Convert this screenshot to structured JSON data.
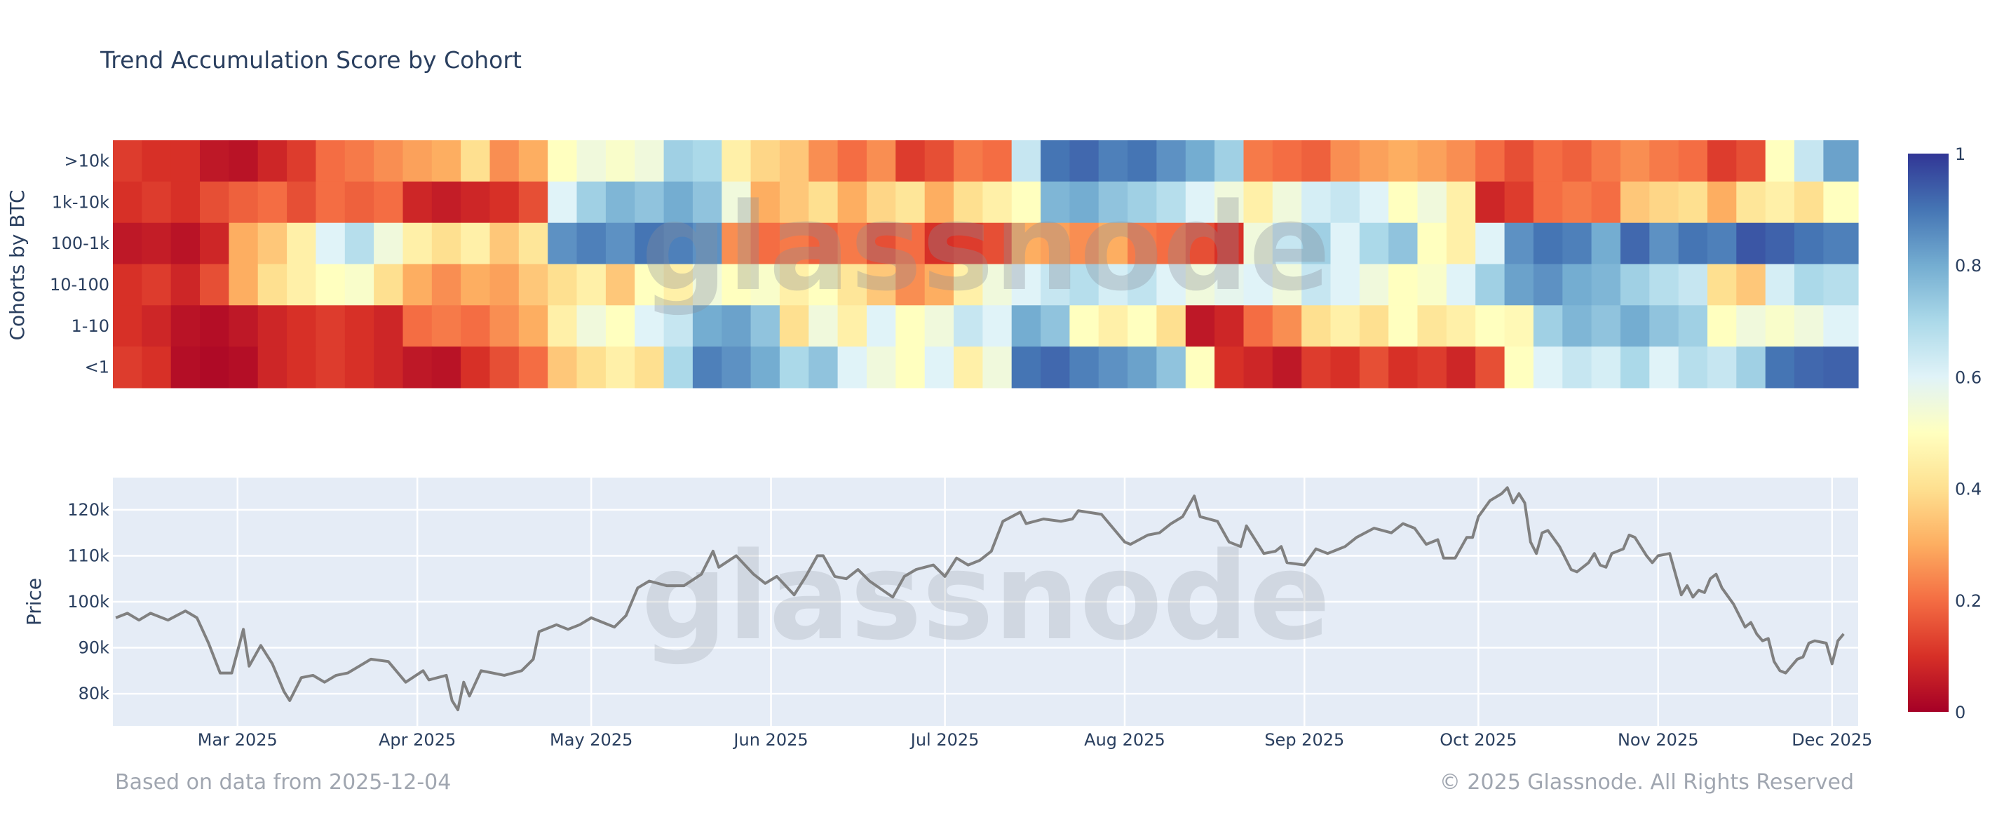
{
  "title": "Trend Accumulation Score by Cohort",
  "footer": {
    "left": "Based on data from 2025-12-04",
    "right": "© 2025 Glassnode. All Rights Reserved"
  },
  "watermark": "glassnode",
  "colors": {
    "text": "#2a3f5f",
    "price_line": "#808080",
    "plot_bg": "#e5ecf6",
    "grid": "#ffffff",
    "footer": "#a0a6b0"
  },
  "chart_data": [
    {
      "type": "heatmap",
      "title": "",
      "xlabel": "",
      "ylabel": "Cohorts by BTC",
      "xlim": [
        "2025-02-07T12:00:00Z",
        "2025-12-05T12:00:00Z"
      ],
      "categories_y": [
        ">10k",
        "1k-10k",
        "100-1k",
        "10-100",
        "1-10",
        "<1"
      ],
      "x": [
        "2025-02-08",
        "2025-02-13",
        "2025-02-18",
        "2025-02-23",
        "2025-02-28",
        "2025-03-05",
        "2025-03-10",
        "2025-03-15",
        "2025-03-20",
        "2025-03-25",
        "2025-03-30",
        "2025-04-04",
        "2025-04-09",
        "2025-04-14",
        "2025-04-19",
        "2025-04-24",
        "2025-04-29",
        "2025-05-04",
        "2025-05-09",
        "2025-05-14",
        "2025-05-19",
        "2025-05-24",
        "2025-05-29",
        "2025-06-03",
        "2025-06-08",
        "2025-06-13",
        "2025-06-18",
        "2025-06-23",
        "2025-06-28",
        "2025-07-03",
        "2025-07-08",
        "2025-07-13",
        "2025-07-18",
        "2025-07-23",
        "2025-07-28",
        "2025-08-02",
        "2025-08-07",
        "2025-08-12",
        "2025-08-17",
        "2025-08-22",
        "2025-08-27",
        "2025-09-01",
        "2025-09-06",
        "2025-09-11",
        "2025-09-16",
        "2025-09-21",
        "2025-09-26",
        "2025-10-01",
        "2025-10-06",
        "2025-10-11",
        "2025-10-16",
        "2025-10-21",
        "2025-10-26",
        "2025-10-31",
        "2025-11-05",
        "2025-11-10",
        "2025-11-15",
        "2025-11-20",
        "2025-11-25",
        "2025-11-30"
      ],
      "z": [
        [
          0.12,
          0.1,
          0.1,
          0.05,
          0.04,
          0.08,
          0.12,
          0.2,
          0.22,
          0.25,
          0.28,
          0.3,
          0.4,
          0.25,
          0.3,
          0.5,
          0.55,
          0.52,
          0.55,
          0.72,
          0.7,
          0.45,
          0.38,
          0.35,
          0.25,
          0.2,
          0.25,
          0.12,
          0.15,
          0.22,
          0.2,
          0.65,
          0.9,
          0.92,
          0.88,
          0.9,
          0.85,
          0.8,
          0.72,
          0.22,
          0.2,
          0.18,
          0.25,
          0.28,
          0.3,
          0.28,
          0.25,
          0.2,
          0.15,
          0.2,
          0.18,
          0.22,
          0.25,
          0.22,
          0.2,
          0.12,
          0.15,
          0.5,
          0.65,
          0.82
        ],
        [
          0.1,
          0.12,
          0.1,
          0.15,
          0.18,
          0.2,
          0.15,
          0.2,
          0.18,
          0.2,
          0.08,
          0.06,
          0.08,
          0.1,
          0.15,
          0.6,
          0.72,
          0.78,
          0.75,
          0.8,
          0.75,
          0.55,
          0.3,
          0.35,
          0.4,
          0.3,
          0.38,
          0.42,
          0.3,
          0.4,
          0.45,
          0.5,
          0.78,
          0.8,
          0.75,
          0.72,
          0.68,
          0.6,
          0.55,
          0.45,
          0.55,
          0.62,
          0.65,
          0.6,
          0.5,
          0.55,
          0.45,
          0.08,
          0.12,
          0.2,
          0.22,
          0.2,
          0.35,
          0.38,
          0.4,
          0.3,
          0.42,
          0.45,
          0.4,
          0.5
        ],
        [
          0.05,
          0.06,
          0.04,
          0.08,
          0.3,
          0.35,
          0.45,
          0.6,
          0.68,
          0.55,
          0.45,
          0.4,
          0.45,
          0.35,
          0.42,
          0.85,
          0.88,
          0.85,
          0.9,
          0.88,
          0.85,
          0.25,
          0.2,
          0.22,
          0.18,
          0.22,
          0.15,
          0.2,
          0.1,
          0.12,
          0.15,
          0.3,
          0.28,
          0.25,
          0.3,
          0.22,
          0.2,
          0.15,
          0.1,
          0.55,
          0.65,
          0.72,
          0.6,
          0.7,
          0.75,
          0.5,
          0.45,
          0.6,
          0.85,
          0.9,
          0.88,
          0.8,
          0.92,
          0.85,
          0.9,
          0.88,
          0.95,
          0.93,
          0.9,
          0.88
        ],
        [
          0.1,
          0.12,
          0.08,
          0.15,
          0.3,
          0.4,
          0.45,
          0.5,
          0.52,
          0.4,
          0.3,
          0.25,
          0.3,
          0.28,
          0.35,
          0.4,
          0.45,
          0.35,
          0.5,
          0.45,
          0.55,
          0.5,
          0.52,
          0.45,
          0.5,
          0.42,
          0.35,
          0.25,
          0.3,
          0.45,
          0.55,
          0.6,
          0.65,
          0.68,
          0.62,
          0.66,
          0.6,
          0.55,
          0.58,
          0.6,
          0.55,
          0.65,
          0.6,
          0.55,
          0.5,
          0.52,
          0.6,
          0.72,
          0.82,
          0.85,
          0.8,
          0.78,
          0.72,
          0.68,
          0.65,
          0.4,
          0.35,
          0.62,
          0.7,
          0.68
        ],
        [
          0.1,
          0.08,
          0.04,
          0.03,
          0.05,
          0.08,
          0.1,
          0.12,
          0.1,
          0.08,
          0.2,
          0.22,
          0.2,
          0.25,
          0.3,
          0.45,
          0.55,
          0.5,
          0.6,
          0.65,
          0.8,
          0.82,
          0.75,
          0.4,
          0.55,
          0.45,
          0.6,
          0.5,
          0.55,
          0.65,
          0.6,
          0.8,
          0.75,
          0.5,
          0.45,
          0.5,
          0.4,
          0.05,
          0.08,
          0.2,
          0.25,
          0.4,
          0.45,
          0.4,
          0.5,
          0.42,
          0.45,
          0.5,
          0.48,
          0.72,
          0.78,
          0.75,
          0.8,
          0.75,
          0.72,
          0.5,
          0.55,
          0.52,
          0.55,
          0.6
        ],
        [
          0.12,
          0.1,
          0.03,
          0.02,
          0.03,
          0.08,
          0.1,
          0.12,
          0.1,
          0.08,
          0.05,
          0.04,
          0.1,
          0.15,
          0.2,
          0.35,
          0.4,
          0.45,
          0.4,
          0.7,
          0.88,
          0.85,
          0.8,
          0.7,
          0.75,
          0.6,
          0.55,
          0.5,
          0.6,
          0.45,
          0.55,
          0.9,
          0.92,
          0.88,
          0.85,
          0.82,
          0.75,
          0.5,
          0.1,
          0.08,
          0.05,
          0.12,
          0.1,
          0.15,
          0.1,
          0.12,
          0.08,
          0.15,
          0.5,
          0.6,
          0.65,
          0.62,
          0.7,
          0.6,
          0.68,
          0.65,
          0.72,
          0.9,
          0.92,
          0.93
        ]
      ],
      "zlim": [
        0,
        1
      ],
      "colorscale": "RdYlBu",
      "colorbar": {
        "ticks": [
          0,
          0.2,
          0.4,
          0.6,
          0.8,
          1
        ],
        "tick_labels": [
          "0",
          "0.2",
          "0.4",
          "0.6",
          "0.8",
          "1"
        ]
      }
    },
    {
      "type": "line",
      "title": "",
      "xlabel": "",
      "ylabel": "Price",
      "xlim": [
        "2025-02-07T12:00:00Z",
        "2025-12-05T12:00:00Z"
      ],
      "ylim": [
        73000,
        127000
      ],
      "grid": true,
      "yticks": [
        80000,
        90000,
        100000,
        110000,
        120000
      ],
      "ytick_labels": [
        "80k",
        "90k",
        "100k",
        "110k",
        "120k"
      ],
      "xticks": [
        "2025-03-01",
        "2025-04-01",
        "2025-05-01",
        "2025-06-01",
        "2025-07-01",
        "2025-08-01",
        "2025-09-01",
        "2025-10-01",
        "2025-11-01",
        "2025-12-01"
      ],
      "xtick_labels": [
        "Mar 2025",
        "Apr 2025",
        "May 2025",
        "Jun 2025",
        "Jul 2025",
        "Aug 2025",
        "Sep 2025",
        "Oct 2025",
        "Nov 2025",
        "Dec 2025"
      ],
      "points": [
        [
          "2025-02-08",
          96500
        ],
        [
          "2025-02-10",
          97500
        ],
        [
          "2025-02-12",
          96000
        ],
        [
          "2025-02-14",
          97500
        ],
        [
          "2025-02-17",
          96000
        ],
        [
          "2025-02-20",
          98000
        ],
        [
          "2025-02-22",
          96500
        ],
        [
          "2025-02-24",
          91000
        ],
        [
          "2025-02-26",
          84500
        ],
        [
          "2025-02-28",
          84500
        ],
        [
          "2025-03-02",
          94000
        ],
        [
          "2025-03-03",
          86000
        ],
        [
          "2025-03-05",
          90500
        ],
        [
          "2025-03-07",
          86500
        ],
        [
          "2025-03-09",
          80500
        ],
        [
          "2025-03-10",
          78500
        ],
        [
          "2025-03-12",
          83500
        ],
        [
          "2025-03-14",
          84000
        ],
        [
          "2025-03-16",
          82500
        ],
        [
          "2025-03-18",
          84000
        ],
        [
          "2025-03-20",
          84500
        ],
        [
          "2025-03-24",
          87500
        ],
        [
          "2025-03-27",
          87000
        ],
        [
          "2025-03-30",
          82500
        ],
        [
          "2025-04-02",
          85000
        ],
        [
          "2025-04-03",
          83000
        ],
        [
          "2025-04-06",
          84000
        ],
        [
          "2025-04-07",
          78500
        ],
        [
          "2025-04-08",
          76500
        ],
        [
          "2025-04-09",
          82500
        ],
        [
          "2025-04-10",
          79500
        ],
        [
          "2025-04-12",
          85000
        ],
        [
          "2025-04-14",
          84500
        ],
        [
          "2025-04-16",
          84000
        ],
        [
          "2025-04-19",
          85000
        ],
        [
          "2025-04-21",
          87500
        ],
        [
          "2025-04-22",
          93500
        ],
        [
          "2025-04-25",
          95000
        ],
        [
          "2025-04-27",
          94000
        ],
        [
          "2025-04-29",
          95000
        ],
        [
          "2025-05-01",
          96500
        ],
        [
          "2025-05-03",
          95500
        ],
        [
          "2025-05-05",
          94500
        ],
        [
          "2025-05-07",
          97000
        ],
        [
          "2025-05-09",
          103000
        ],
        [
          "2025-05-11",
          104500
        ],
        [
          "2025-05-14",
          103500
        ],
        [
          "2025-05-17",
          103500
        ],
        [
          "2025-05-20",
          106000
        ],
        [
          "2025-05-22",
          111000
        ],
        [
          "2025-05-23",
          107500
        ],
        [
          "2025-05-26",
          110000
        ],
        [
          "2025-05-29",
          106000
        ],
        [
          "2025-05-31",
          104000
        ],
        [
          "2025-06-02",
          105500
        ],
        [
          "2025-06-05",
          101500
        ],
        [
          "2025-06-07",
          105500
        ],
        [
          "2025-06-09",
          110000
        ],
        [
          "2025-06-10",
          110000
        ],
        [
          "2025-06-12",
          105500
        ],
        [
          "2025-06-14",
          105000
        ],
        [
          "2025-06-16",
          107000
        ],
        [
          "2025-06-18",
          104500
        ],
        [
          "2025-06-22",
          101000
        ],
        [
          "2025-06-24",
          105500
        ],
        [
          "2025-06-26",
          107000
        ],
        [
          "2025-06-29",
          108000
        ],
        [
          "2025-07-01",
          105500
        ],
        [
          "2025-07-03",
          109500
        ],
        [
          "2025-07-05",
          108000
        ],
        [
          "2025-07-07",
          109000
        ],
        [
          "2025-07-09",
          111000
        ],
        [
          "2025-07-11",
          117500
        ],
        [
          "2025-07-14",
          119500
        ],
        [
          "2025-07-15",
          117000
        ],
        [
          "2025-07-18",
          118000
        ],
        [
          "2025-07-21",
          117500
        ],
        [
          "2025-07-23",
          118000
        ],
        [
          "2025-07-24",
          119800
        ],
        [
          "2025-07-28",
          119000
        ],
        [
          "2025-08-01",
          113000
        ],
        [
          "2025-08-02",
          112500
        ],
        [
          "2025-08-05",
          114500
        ],
        [
          "2025-08-07",
          115000
        ],
        [
          "2025-08-09",
          117000
        ],
        [
          "2025-08-11",
          118500
        ],
        [
          "2025-08-13",
          123000
        ],
        [
          "2025-08-14",
          118500
        ],
        [
          "2025-08-17",
          117500
        ],
        [
          "2025-08-19",
          113000
        ],
        [
          "2025-08-21",
          112000
        ],
        [
          "2025-08-22",
          116500
        ],
        [
          "2025-08-25",
          110500
        ],
        [
          "2025-08-27",
          111000
        ],
        [
          "2025-08-28",
          112000
        ],
        [
          "2025-08-29",
          108500
        ],
        [
          "2025-09-01",
          108000
        ],
        [
          "2025-09-03",
          111500
        ],
        [
          "2025-09-05",
          110500
        ],
        [
          "2025-09-08",
          112000
        ],
        [
          "2025-09-10",
          114000
        ],
        [
          "2025-09-13",
          116000
        ],
        [
          "2025-09-16",
          115000
        ],
        [
          "2025-09-18",
          117000
        ],
        [
          "2025-09-20",
          116000
        ],
        [
          "2025-09-22",
          112500
        ],
        [
          "2025-09-24",
          113500
        ],
        [
          "2025-09-25",
          109500
        ],
        [
          "2025-09-27",
          109500
        ],
        [
          "2025-09-29",
          114000
        ],
        [
          "2025-09-30",
          114000
        ],
        [
          "2025-10-01",
          118500
        ],
        [
          "2025-10-03",
          122000
        ],
        [
          "2025-10-05",
          123500
        ],
        [
          "2025-10-06",
          124800
        ],
        [
          "2025-10-07",
          121500
        ],
        [
          "2025-10-08",
          123500
        ],
        [
          "2025-10-09",
          121500
        ],
        [
          "2025-10-10",
          113000
        ],
        [
          "2025-10-11",
          110500
        ],
        [
          "2025-10-12",
          115000
        ],
        [
          "2025-10-13",
          115500
        ],
        [
          "2025-10-15",
          112000
        ],
        [
          "2025-10-17",
          107000
        ],
        [
          "2025-10-18",
          106500
        ],
        [
          "2025-10-20",
          108500
        ],
        [
          "2025-10-21",
          110500
        ],
        [
          "2025-10-22",
          108000
        ],
        [
          "2025-10-23",
          107500
        ],
        [
          "2025-10-24",
          110500
        ],
        [
          "2025-10-26",
          111500
        ],
        [
          "2025-10-27",
          114500
        ],
        [
          "2025-10-28",
          114000
        ],
        [
          "2025-10-29",
          112000
        ],
        [
          "2025-10-30",
          110000
        ],
        [
          "2025-10-31",
          108500
        ],
        [
          "2025-11-01",
          110000
        ],
        [
          "2025-11-03",
          110500
        ],
        [
          "2025-11-04",
          106000
        ],
        [
          "2025-11-05",
          101500
        ],
        [
          "2025-11-06",
          103500
        ],
        [
          "2025-11-07",
          101000
        ],
        [
          "2025-11-08",
          102500
        ],
        [
          "2025-11-09",
          102000
        ],
        [
          "2025-11-10",
          105000
        ],
        [
          "2025-11-11",
          106000
        ],
        [
          "2025-11-12",
          103000
        ],
        [
          "2025-11-14",
          99500
        ],
        [
          "2025-11-16",
          94500
        ],
        [
          "2025-11-17",
          95500
        ],
        [
          "2025-11-18",
          93000
        ],
        [
          "2025-11-19",
          91500
        ],
        [
          "2025-11-20",
          92000
        ],
        [
          "2025-11-21",
          87000
        ],
        [
          "2025-11-22",
          85000
        ],
        [
          "2025-11-23",
          84500
        ],
        [
          "2025-11-25",
          87500
        ],
        [
          "2025-11-26",
          88000
        ],
        [
          "2025-11-27",
          91000
        ],
        [
          "2025-11-28",
          91500
        ],
        [
          "2025-11-30",
          91000
        ],
        [
          "2025-12-01",
          86500
        ],
        [
          "2025-12-02",
          91500
        ],
        [
          "2025-12-03",
          93000
        ]
      ]
    }
  ]
}
